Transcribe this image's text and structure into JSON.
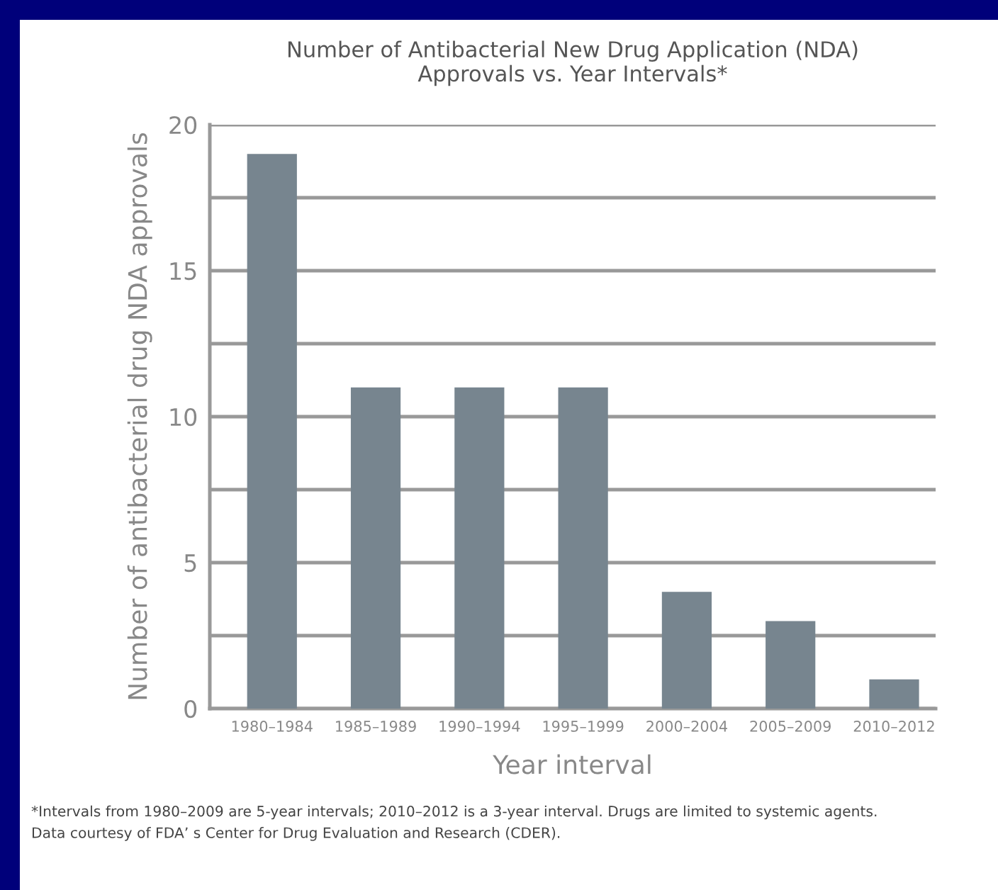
{
  "chart_data": {
    "type": "bar",
    "title": "Number of Antibacterial New Drug Application (NDA)\nApprovals vs. Year Intervals*",
    "xlabel": "Year interval",
    "ylabel": "Number of antibacterial drug NDA approvals",
    "categories": [
      "1980–1984",
      "1985–1989",
      "1990–1994",
      "1995–1999",
      "2000–2004",
      "2005–2009",
      "2010–2012"
    ],
    "values": [
      19,
      11,
      11,
      11,
      4,
      3,
      1
    ],
    "color": "#77858f",
    "ylim": [
      0,
      20
    ],
    "yticks": [
      0,
      {
        "value": 2.5,
        "label": null
      },
      5,
      {
        "value": 7.5,
        "label": null
      },
      10,
      {
        "value": 12.5,
        "label": null
      },
      15,
      {
        "value": 17.5,
        "label": null
      },
      20
    ],
    "grid": "y",
    "annotations": [
      "*Intervals from 1980–2009 are 5-year intervals; 2010–2012 is a 3-year interval. Drugs are limited to systemic agents.\nData courtesy of FDA’ s Center for Drug Evaluation and Research (CDER)."
    ]
  }
}
